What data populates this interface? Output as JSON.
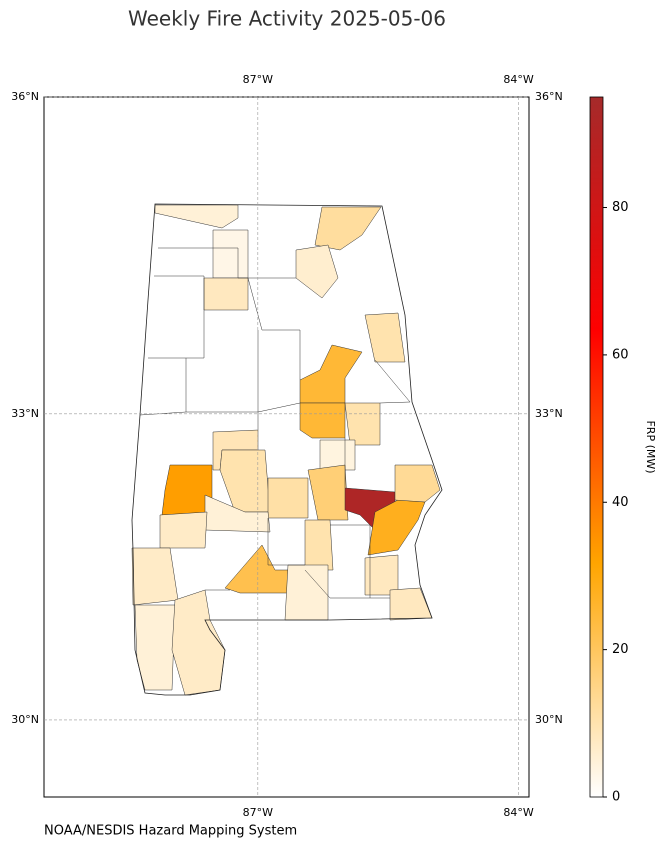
{
  "chart_data": {
    "type": "choropleth",
    "title": "Weekly Fire Activity 2025-05-06",
    "xlim": [
      -89.46,
      -83.88
    ],
    "ylim": [
      29.23,
      36
    ],
    "xticks": [
      {
        "value": -87,
        "label": "87°W"
      },
      {
        "value": -84,
        "label": "84°W"
      }
    ],
    "yticks": [
      {
        "value": 30,
        "label": "30°N"
      },
      {
        "value": 33,
        "label": "33°N"
      },
      {
        "value": 36,
        "label": "36°N"
      }
    ],
    "grid": true,
    "values": [
      5,
      12,
      3,
      8,
      6,
      10,
      25,
      25,
      10,
      4,
      33,
      9,
      10,
      11,
      17,
      92,
      28,
      13,
      5,
      7,
      22,
      10,
      5,
      7,
      5,
      7,
      8,
      8
    ],
    "colorbar": {
      "label": "FRP (MW)",
      "lim": [
        0,
        95
      ],
      "ticks": [
        0,
        20,
        40,
        60,
        80
      ],
      "colors": [
        "#ffffff",
        "#ffa500",
        "#ff0000",
        "#a52a2a"
      ]
    },
    "source": "NOAA/NESDIS Hazard Mapping System"
  }
}
